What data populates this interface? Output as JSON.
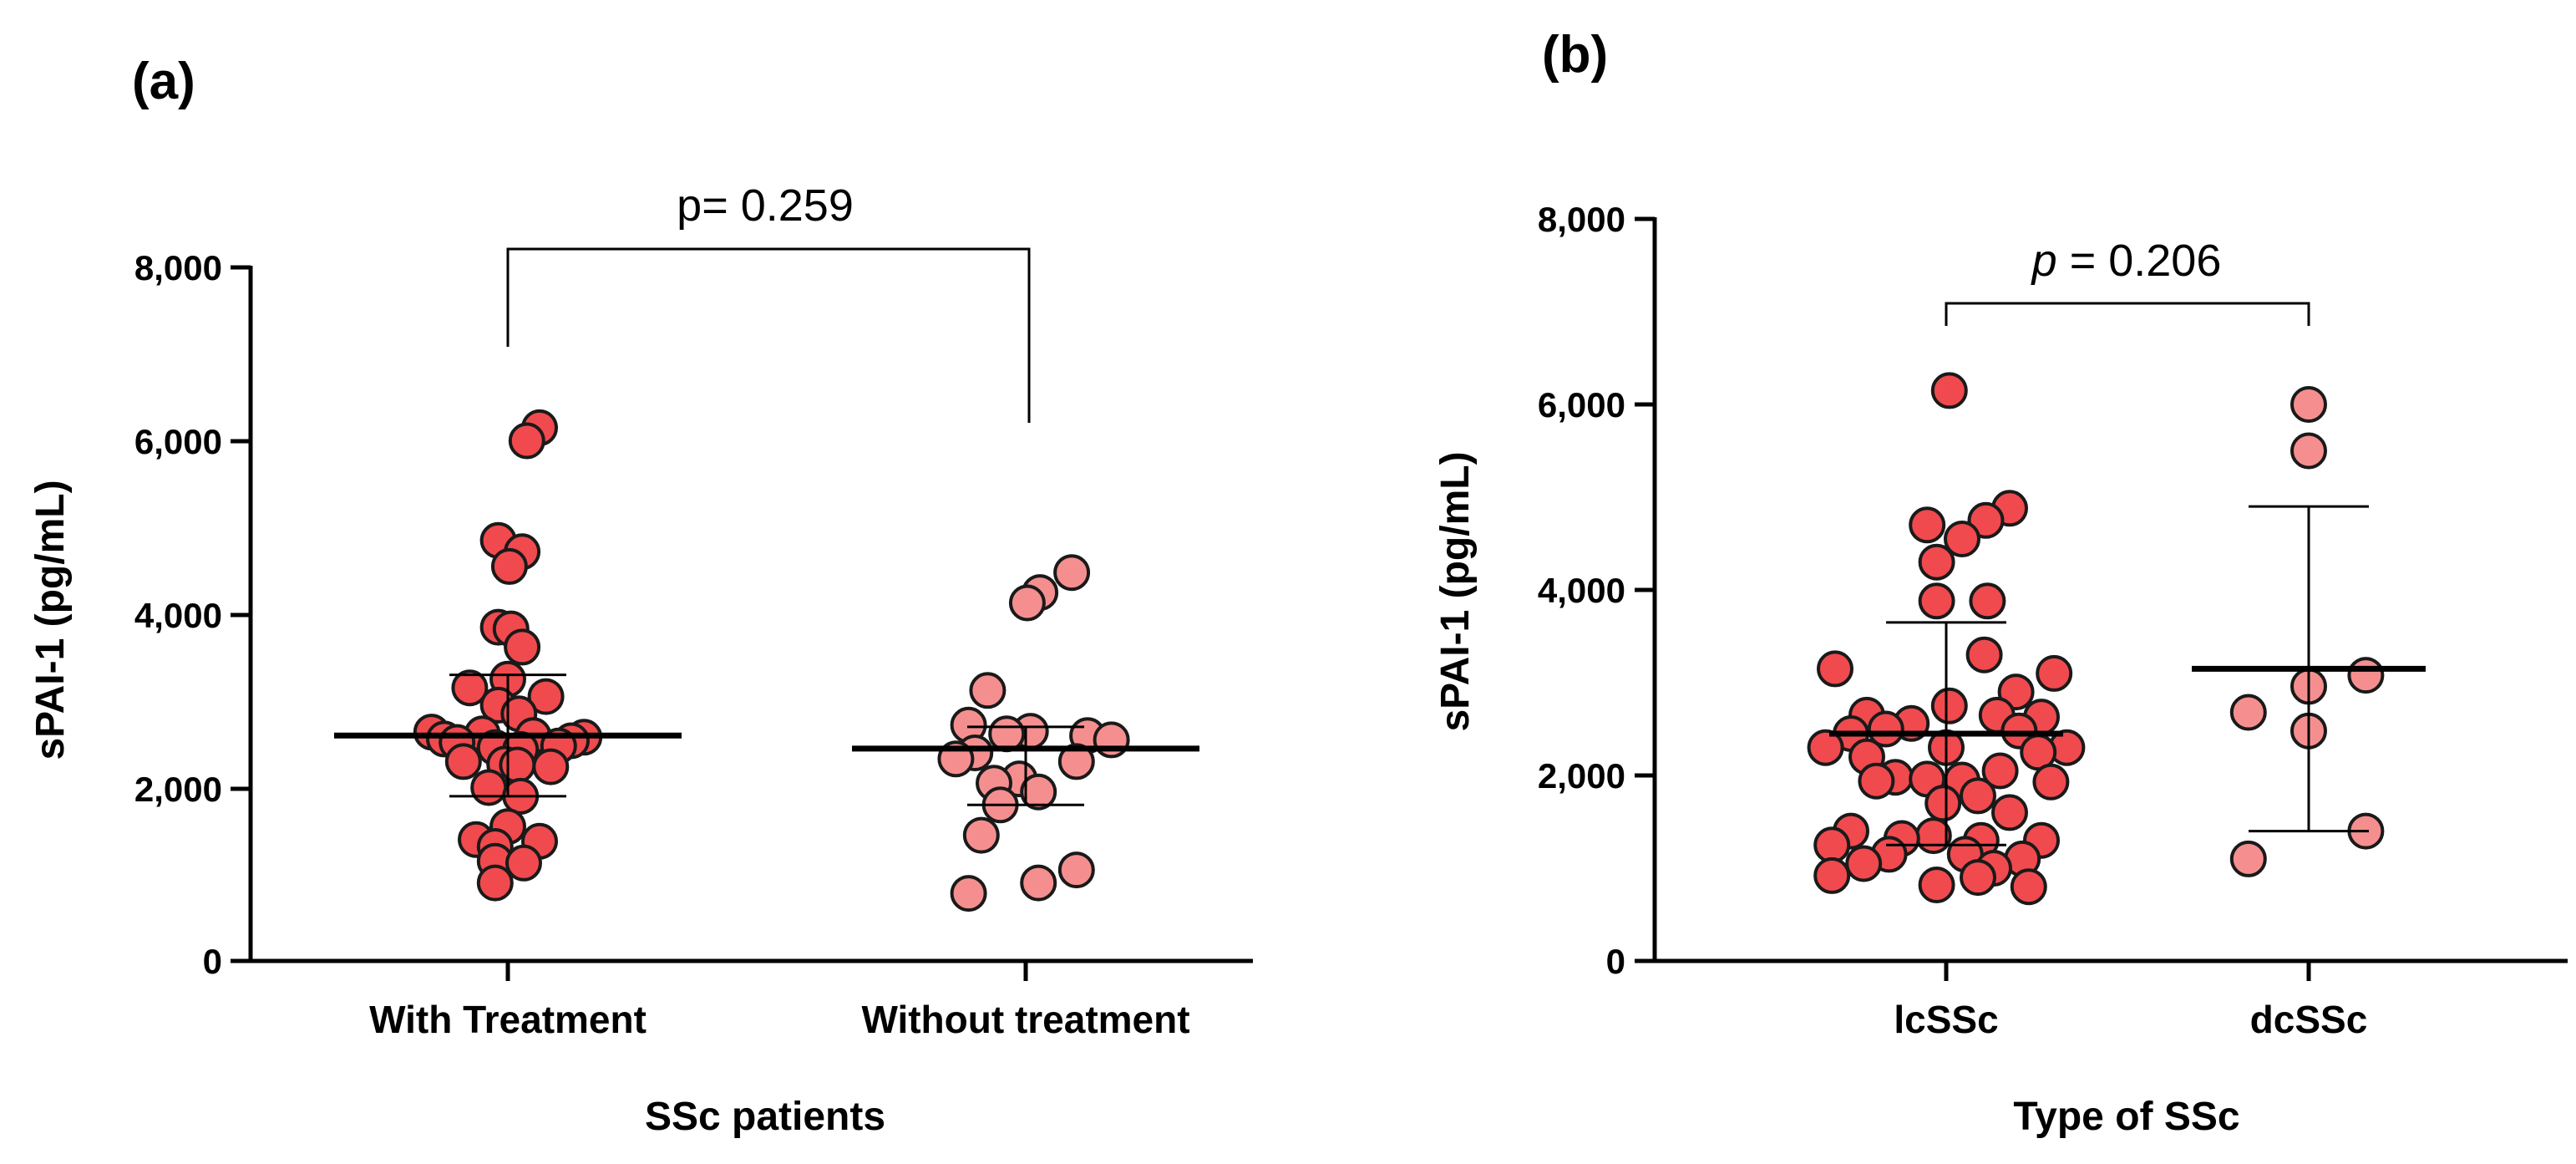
{
  "colors": {
    "dark_dot": "#f04a4e",
    "light_dot": "#f58f8f"
  },
  "chart_data": [
    {
      "panel": "(a)",
      "type": "scatter",
      "subtype": "dot-plot with mean and SD",
      "xlabel": "SSc patients",
      "ylabel": "sPAI‑1 (pg/mL)",
      "ylim": [
        0,
        8000
      ],
      "yticks": [
        0,
        2000,
        4000,
        6000,
        8000
      ],
      "ytick_labels": [
        "0",
        "2,000",
        "4,000",
        "6,000",
        "8,000"
      ],
      "p_value": {
        "prefix": "p",
        "text": "= 0.259"
      },
      "groups": [
        {
          "name": "With Treatment",
          "color": "dark",
          "mean": 2600,
          "sd_low": 1900,
          "sd_high": 3300,
          "points": [
            {
              "v": 6150,
              "j": 1.0
            },
            {
              "v": 6000,
              "j": 0.6
            },
            {
              "v": 4850,
              "j": -0.3
            },
            {
              "v": 4720,
              "j": 0.45
            },
            {
              "v": 4550,
              "j": 0.05
            },
            {
              "v": 3850,
              "j": -0.3
            },
            {
              "v": 3830,
              "j": 0.1
            },
            {
              "v": 3620,
              "j": 0.45
            },
            {
              "v": 3250,
              "j": 0.0
            },
            {
              "v": 3150,
              "j": -1.2
            },
            {
              "v": 3050,
              "j": 1.2
            },
            {
              "v": 2950,
              "j": -0.3
            },
            {
              "v": 2850,
              "j": 0.35
            },
            {
              "v": 2640,
              "j": -2.4
            },
            {
              "v": 2620,
              "j": -0.8
            },
            {
              "v": 2600,
              "j": 0.8
            },
            {
              "v": 2580,
              "j": 2.4
            },
            {
              "v": 2560,
              "j": -2.0
            },
            {
              "v": 2540,
              "j": 2.0
            },
            {
              "v": 2520,
              "j": -1.6
            },
            {
              "v": 2480,
              "j": 1.6
            },
            {
              "v": 2460,
              "j": -0.4
            },
            {
              "v": 2440,
              "j": 0.4
            },
            {
              "v": 2300,
              "j": -1.4
            },
            {
              "v": 2270,
              "j": -0.1
            },
            {
              "v": 2260,
              "j": 0.3
            },
            {
              "v": 2240,
              "j": 1.35
            },
            {
              "v": 2000,
              "j": -0.6
            },
            {
              "v": 1900,
              "j": 0.4
            },
            {
              "v": 1550,
              "j": 0.0
            },
            {
              "v": 1400,
              "j": -1.0
            },
            {
              "v": 1380,
              "j": 1.0
            },
            {
              "v": 1320,
              "j": -0.4
            },
            {
              "v": 1150,
              "j": -0.4
            },
            {
              "v": 1130,
              "j": 0.5
            },
            {
              "v": 900,
              "j": -0.4
            }
          ]
        },
        {
          "name": "Without treatment",
          "color": "light",
          "mean": 2450,
          "sd_low": 1800,
          "sd_high": 2700,
          "points": [
            {
              "v": 4480,
              "j": 1.45
            },
            {
              "v": 4250,
              "j": 0.45
            },
            {
              "v": 4130,
              "j": 0.05
            },
            {
              "v": 3120,
              "j": -1.2
            },
            {
              "v": 2720,
              "j": -1.8
            },
            {
              "v": 2650,
              "j": 0.15
            },
            {
              "v": 2620,
              "j": -0.6
            },
            {
              "v": 2600,
              "j": 1.95
            },
            {
              "v": 2550,
              "j": 2.7
            },
            {
              "v": 2400,
              "j": -1.6
            },
            {
              "v": 2330,
              "j": -2.2
            },
            {
              "v": 2300,
              "j": 1.6
            },
            {
              "v": 2100,
              "j": -0.2
            },
            {
              "v": 2050,
              "j": -1.0
            },
            {
              "v": 1950,
              "j": 0.4
            },
            {
              "v": 1800,
              "j": -0.8
            },
            {
              "v": 1450,
              "j": -1.4
            },
            {
              "v": 1050,
              "j": 1.6
            },
            {
              "v": 900,
              "j": 0.4
            },
            {
              "v": 780,
              "j": -1.8
            }
          ]
        }
      ]
    },
    {
      "panel": "(b)",
      "type": "scatter",
      "subtype": "dot-plot with mean and SD",
      "xlabel": "Type of SSc",
      "ylabel": "sPAI‑1 (pg/mL)",
      "ylim": [
        0,
        8000
      ],
      "yticks": [
        0,
        2000,
        4000,
        6000,
        8000
      ],
      "ytick_labels": [
        "0",
        "2,000",
        "4,000",
        "6,000",
        "8,000"
      ],
      "p_value": {
        "prefix": "p",
        "text": "= 0.206"
      },
      "groups": [
        {
          "name": "lcSSc",
          "color": "dark",
          "mean": 2450,
          "sd_low": 1250,
          "sd_high": 3650,
          "points": [
            {
              "v": 6150,
              "j": 0.1
            },
            {
              "v": 4880,
              "j": 2.0
            },
            {
              "v": 4750,
              "j": 1.25
            },
            {
              "v": 4700,
              "j": -0.6
            },
            {
              "v": 4550,
              "j": 0.5
            },
            {
              "v": 4300,
              "j": -0.3
            },
            {
              "v": 3880,
              "j": -0.3
            },
            {
              "v": 3880,
              "j": 1.3
            },
            {
              "v": 3300,
              "j": 1.2
            },
            {
              "v": 3150,
              "j": -3.5
            },
            {
              "v": 3100,
              "j": 3.4
            },
            {
              "v": 2900,
              "j": 2.2
            },
            {
              "v": 2750,
              "j": 0.1
            },
            {
              "v": 2650,
              "j": -2.5
            },
            {
              "v": 2650,
              "j": 1.6
            },
            {
              "v": 2630,
              "j": 3.0
            },
            {
              "v": 2560,
              "j": -1.1
            },
            {
              "v": 2500,
              "j": -1.9
            },
            {
              "v": 2480,
              "j": 2.3
            },
            {
              "v": 2450,
              "j": -3.0
            },
            {
              "v": 2300,
              "j": -3.8
            },
            {
              "v": 2300,
              "j": 0.0
            },
            {
              "v": 2300,
              "j": 3.8
            },
            {
              "v": 2250,
              "j": 2.9
            },
            {
              "v": 2200,
              "j": -2.5
            },
            {
              "v": 2050,
              "j": 1.7
            },
            {
              "v": 1980,
              "j": -1.6
            },
            {
              "v": 1960,
              "j": -0.6
            },
            {
              "v": 1950,
              "j": 0.5
            },
            {
              "v": 1940,
              "j": -2.2
            },
            {
              "v": 1930,
              "j": 3.3
            },
            {
              "v": 1780,
              "j": 1.0
            },
            {
              "v": 1700,
              "j": -0.1
            },
            {
              "v": 1600,
              "j": 2.0
            },
            {
              "v": 1400,
              "j": -3.0
            },
            {
              "v": 1350,
              "j": -0.4
            },
            {
              "v": 1320,
              "j": -1.4
            },
            {
              "v": 1300,
              "j": 3.0
            },
            {
              "v": 1300,
              "j": 1.1
            },
            {
              "v": 1250,
              "j": -3.6
            },
            {
              "v": 1150,
              "j": -1.8
            },
            {
              "v": 1150,
              "j": 0.6
            },
            {
              "v": 1100,
              "j": 2.4
            },
            {
              "v": 1050,
              "j": -2.6
            },
            {
              "v": 1000,
              "j": 1.5
            },
            {
              "v": 920,
              "j": -3.6
            },
            {
              "v": 900,
              "j": 1.0
            },
            {
              "v": 820,
              "j": -0.3
            },
            {
              "v": 800,
              "j": 2.6
            }
          ]
        },
        {
          "name": "dcSSc",
          "color": "light",
          "mean": 3150,
          "sd_low": 1400,
          "sd_high": 4900,
          "points": [
            {
              "v": 6000,
              "j": 0.0
            },
            {
              "v": 5500,
              "j": 0.0
            },
            {
              "v": 3080,
              "j": 1.8
            },
            {
              "v": 2960,
              "j": 0.0
            },
            {
              "v": 2680,
              "j": -1.9
            },
            {
              "v": 2480,
              "j": 0.0
            },
            {
              "v": 1400,
              "j": 1.8
            },
            {
              "v": 1100,
              "j": -1.9
            }
          ]
        }
      ]
    }
  ]
}
